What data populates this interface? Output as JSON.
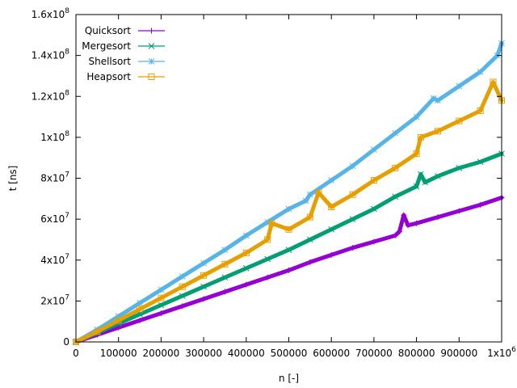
{
  "chart_data": {
    "type": "line",
    "title": "",
    "xlabel": "n [-]",
    "ylabel": "t [ns]",
    "xlim": [
      0,
      1000000
    ],
    "ylim": [
      0,
      160000000
    ],
    "grid": false,
    "legend_position": "top-left",
    "x_ticks": [
      {
        "value": 0,
        "label": "0"
      },
      {
        "value": 100000,
        "label": "100000"
      },
      {
        "value": 200000,
        "label": "200000"
      },
      {
        "value": 300000,
        "label": "300000"
      },
      {
        "value": 400000,
        "label": "400000"
      },
      {
        "value": 500000,
        "label": "500000"
      },
      {
        "value": 600000,
        "label": "600000"
      },
      {
        "value": 700000,
        "label": "700000"
      },
      {
        "value": 800000,
        "label": "800000"
      },
      {
        "value": 900000,
        "label": "900000"
      },
      {
        "value": 1000000,
        "label": "1x10",
        "exp": "6"
      }
    ],
    "y_ticks": [
      {
        "value": 0,
        "label": "0"
      },
      {
        "value": 20000000,
        "label": "2x10",
        "exp": "7"
      },
      {
        "value": 40000000,
        "label": "4x10",
        "exp": "7"
      },
      {
        "value": 60000000,
        "label": "6x10",
        "exp": "7"
      },
      {
        "value": 80000000,
        "label": "8x10",
        "exp": "7"
      },
      {
        "value": 100000000,
        "label": "1x10",
        "exp": "8"
      },
      {
        "value": 120000000,
        "label": "1.2x10",
        "exp": "8"
      },
      {
        "value": 140000000,
        "label": "1.4x10",
        "exp": "8"
      },
      {
        "value": 160000000,
        "label": "1.6x10",
        "exp": "8"
      }
    ],
    "series": [
      {
        "name": "Quicksort",
        "color": "#9400d3",
        "marker": "plus",
        "x": [
          0,
          50000,
          100000,
          150000,
          200000,
          250000,
          300000,
          350000,
          400000,
          450000,
          500000,
          550000,
          600000,
          650000,
          700000,
          750000,
          760000,
          770000,
          780000,
          800000,
          850000,
          900000,
          950000,
          1000000
        ],
        "y": [
          0,
          3500000,
          7000000,
          10500000,
          14000000,
          17500000,
          21000000,
          24500000,
          28000000,
          31500000,
          35000000,
          39000000,
          42500000,
          46000000,
          49000000,
          52000000,
          54000000,
          62000000,
          57000000,
          58000000,
          61000000,
          64000000,
          67000000,
          70500000
        ]
      },
      {
        "name": "Mergesort",
        "color": "#009e73",
        "marker": "cross",
        "x": [
          0,
          50000,
          100000,
          150000,
          200000,
          250000,
          300000,
          350000,
          400000,
          450000,
          500000,
          550000,
          600000,
          650000,
          700000,
          750000,
          800000,
          810000,
          820000,
          850000,
          900000,
          950000,
          1000000
        ],
        "y": [
          0,
          4500000,
          9000000,
          13500000,
          18000000,
          22500000,
          27000000,
          31500000,
          36000000,
          40500000,
          45000000,
          50000000,
          55000000,
          60000000,
          65000000,
          71000000,
          76000000,
          82000000,
          78000000,
          81000000,
          85000000,
          88000000,
          92000000
        ]
      },
      {
        "name": "Shellsort",
        "color": "#56b4e9",
        "marker": "star",
        "x": [
          0,
          50000,
          100000,
          150000,
          200000,
          250000,
          300000,
          350000,
          400000,
          450000,
          500000,
          540000,
          550000,
          600000,
          650000,
          700000,
          750000,
          800000,
          840000,
          850000,
          900000,
          950000,
          990000,
          1000000
        ],
        "y": [
          0,
          6000000,
          12500000,
          19000000,
          25500000,
          32000000,
          38500000,
          45000000,
          52000000,
          58500000,
          65000000,
          69000000,
          72000000,
          79000000,
          86000000,
          94000000,
          102000000,
          110000000,
          119000000,
          118000000,
          125000000,
          132000000,
          140000000,
          146000000
        ]
      },
      {
        "name": "Heapsort",
        "color": "#e69f00",
        "marker": "square",
        "x": [
          0,
          50000,
          100000,
          150000,
          200000,
          250000,
          300000,
          350000,
          400000,
          450000,
          460000,
          500000,
          550000,
          570000,
          600000,
          650000,
          700000,
          750000,
          800000,
          810000,
          850000,
          900000,
          950000,
          980000,
          1000000
        ],
        "y": [
          0,
          5000000,
          10500000,
          16000000,
          21500000,
          27000000,
          32500000,
          38000000,
          43500000,
          50000000,
          58000000,
          55000000,
          61000000,
          73000000,
          66000000,
          72000000,
          79000000,
          85000000,
          92000000,
          100000000,
          103000000,
          108000000,
          113000000,
          127000000,
          118000000
        ]
      }
    ]
  }
}
